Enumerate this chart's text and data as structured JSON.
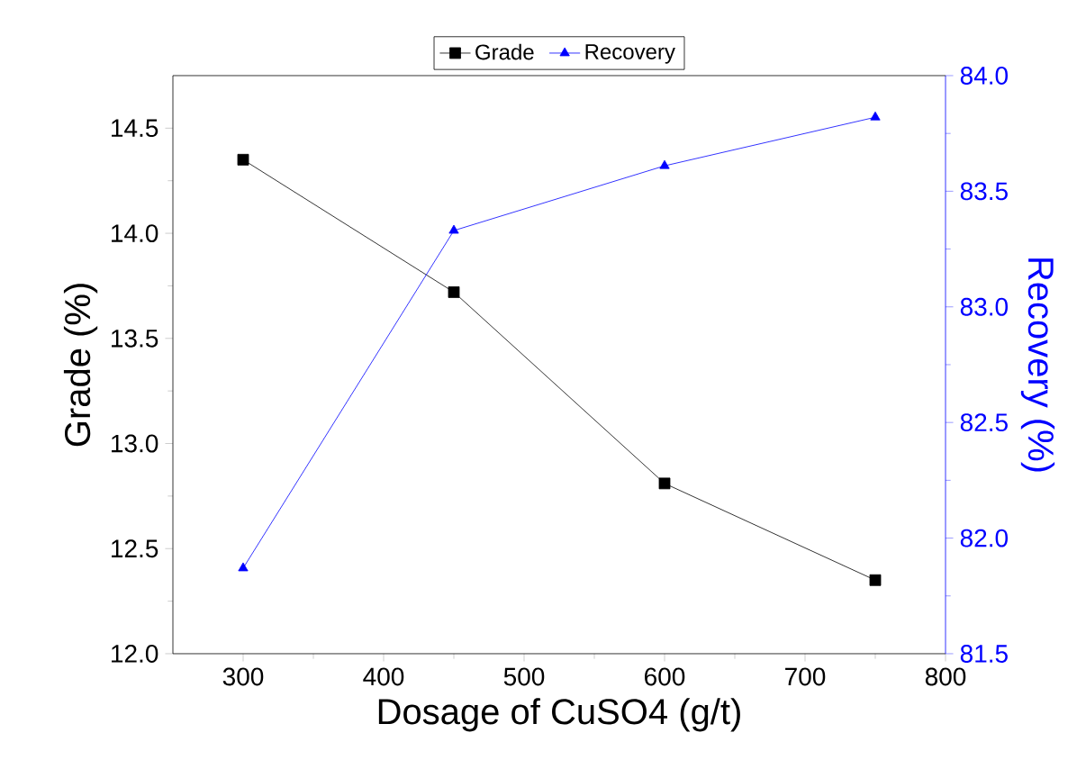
{
  "chart_data": {
    "type": "line",
    "xlabel": "Dosage of CuSO4 (g/t)",
    "ylabel": "Grade (%)",
    "y2label": "Recovery (%)",
    "x": [
      300,
      450,
      600,
      750
    ],
    "series": [
      {
        "name": "Grade",
        "color": "#000000",
        "marker": "square",
        "values": [
          14.35,
          13.72,
          12.81,
          12.35
        ]
      },
      {
        "name": "Recovery",
        "color": "#0000ff",
        "marker": "triangle",
        "axis": "y2",
        "values": [
          81.87,
          83.33,
          83.61,
          83.82
        ]
      }
    ],
    "xlim": [
      250,
      800
    ],
    "xticks": [
      300,
      400,
      500,
      600,
      700,
      800
    ],
    "ylim": [
      12.0,
      14.75
    ],
    "yticks": [
      {
        "value": 12.0,
        "label": "12.0"
      },
      {
        "value": 12.5,
        "label": "12.5"
      },
      {
        "value": 13.0,
        "label": "13.0"
      },
      {
        "value": 13.5,
        "label": "13.5"
      },
      {
        "value": 14.0,
        "label": "14.0"
      },
      {
        "value": 14.5,
        "label": "14.5"
      }
    ],
    "y2lim": [
      81.5,
      84.0
    ],
    "y2ticks": [
      {
        "value": 81.5,
        "label": "81.5"
      },
      {
        "value": 82.0,
        "label": "82.0"
      },
      {
        "value": 82.5,
        "label": "82.5"
      },
      {
        "value": 83.0,
        "label": "83.0"
      },
      {
        "value": 83.5,
        "label": "83.5"
      },
      {
        "value": 84.0,
        "label": "84.0"
      }
    ],
    "legend": "top",
    "grid": false,
    "line_style": "solid"
  }
}
